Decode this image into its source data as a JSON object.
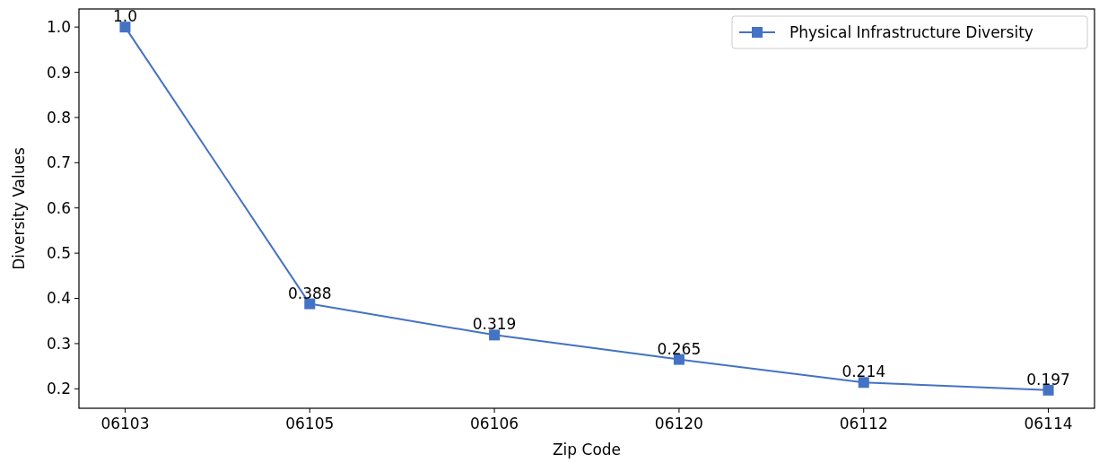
{
  "chart_data": {
    "type": "line",
    "xlabel": "Zip Code",
    "ylabel": "Diversity Values",
    "categories": [
      "06103",
      "06105",
      "06106",
      "06120",
      "06112",
      "06114"
    ],
    "series": [
      {
        "name": "Physical Infrastructure Diversity",
        "color": "#4472c4",
        "values": [
          1,
          0.388,
          0.319,
          0.265,
          0.214,
          0.197
        ],
        "value_labels": [
          "1.0",
          "0.388",
          "0.319",
          "0.265",
          "0.214",
          "0.197"
        ]
      }
    ],
    "ylim": [
      0.157,
      1.04
    ],
    "yticks": [
      0.2,
      0.3,
      0.4,
      0.5,
      0.6,
      0.7,
      0.8,
      0.9,
      {
        "value": 1,
        "label": "1.0"
      }
    ],
    "marker": "square",
    "line_style": "solid",
    "legend": "top right",
    "grid": false
  }
}
